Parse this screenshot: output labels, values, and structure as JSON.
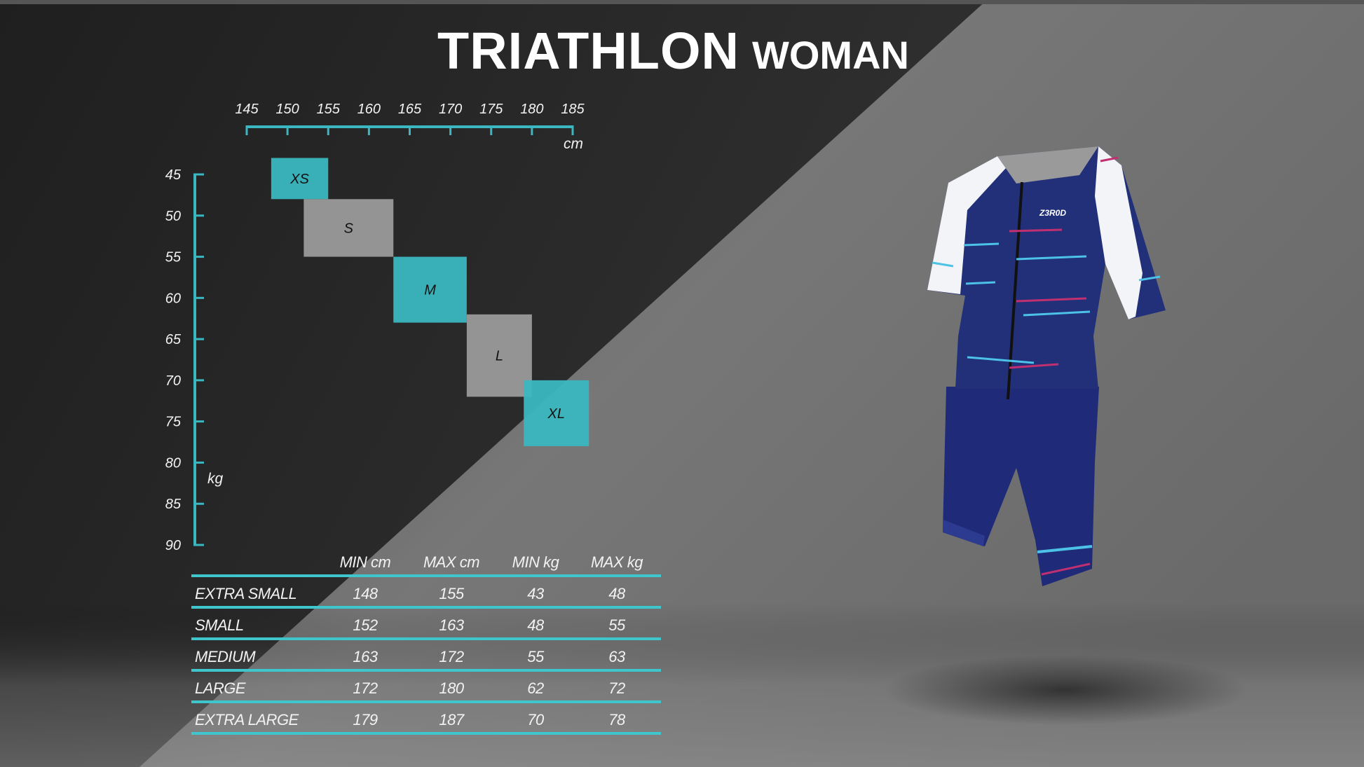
{
  "title": {
    "main": "TRIATHLON",
    "sub": "WOMAN"
  },
  "colors": {
    "accent": "#3ab7c0",
    "gray_box": "#9a9a9a",
    "background": "#262626",
    "suit_navy": "#1e2a6e"
  },
  "chart_data": {
    "type": "bar",
    "title": "",
    "xlabel": "cm",
    "ylabel": "kg",
    "xlim": [
      145,
      185
    ],
    "ylim": [
      45,
      90
    ],
    "x_axis_position": "top",
    "y_axis_inverted": true,
    "grid": false,
    "x_ticks": [
      "145",
      "150",
      "155",
      "160",
      "165",
      "170",
      "175",
      "180",
      "185"
    ],
    "y_ticks": [
      "45",
      "50",
      "55",
      "60",
      "65",
      "70",
      "75",
      "80",
      "85",
      "90"
    ],
    "boxes": [
      {
        "label": "XS",
        "x": [
          148,
          155
        ],
        "y": [
          43,
          48
        ],
        "color": "#3ab7c0"
      },
      {
        "label": "S",
        "x": [
          152,
          163
        ],
        "y": [
          48,
          55
        ],
        "color": "#9a9a9a"
      },
      {
        "label": "M",
        "x": [
          163,
          172
        ],
        "y": [
          55,
          63
        ],
        "color": "#3ab7c0"
      },
      {
        "label": "L",
        "x": [
          172,
          180
        ],
        "y": [
          62,
          72
        ],
        "color": "#9a9a9a"
      },
      {
        "label": "XL",
        "x": [
          179,
          187
        ],
        "y": [
          70,
          78
        ],
        "color": "#3ab7c0"
      }
    ]
  },
  "table": {
    "headers": [
      "",
      "MIN cm",
      "MAX cm",
      "MIN kg",
      "MAX kg"
    ],
    "rows": [
      [
        "EXTRA SMALL",
        "148",
        "155",
        "43",
        "48"
      ],
      [
        "SMALL",
        "152",
        "163",
        "48",
        "55"
      ],
      [
        "MEDIUM",
        "163",
        "172",
        "55",
        "63"
      ],
      [
        "LARGE",
        "172",
        "180",
        "62",
        "72"
      ],
      [
        "EXTRA LARGE",
        "179",
        "187",
        "70",
        "78"
      ]
    ]
  },
  "product": {
    "logo_text": "Z3R0D"
  }
}
